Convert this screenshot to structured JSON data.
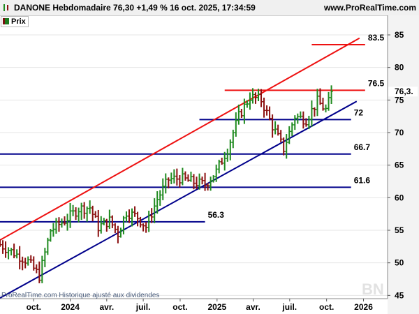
{
  "header": {
    "title": "DANONE Hebdomadaire 76,30 +1,49 % 16 oct. 2025, 17:34:59",
    "site": "www.ProRealTime.com"
  },
  "legend": {
    "label": "Prix"
  },
  "footer": {
    "note": "ProRealTime.com Historique ajusté aux dividendes",
    "watermark": "BN"
  },
  "colors": {
    "up": "#1f8a1f",
    "down": "#8b1010",
    "support": "#00008b",
    "resistance": "#ee1111"
  },
  "last_price_label": "76,3.",
  "chart_data": {
    "type": "ohlc",
    "ylim": [
      44.5,
      88
    ],
    "yticks": [
      {
        "value": 45,
        "label": "45"
      },
      {
        "value": 50,
        "label": "50"
      },
      {
        "value": 55,
        "label": "55"
      },
      {
        "value": 60,
        "label": "60"
      },
      {
        "value": 65,
        "label": "65"
      },
      {
        "value": 70,
        "label": "70"
      },
      {
        "value": 75,
        "label": "75"
      },
      {
        "value": 80,
        "label": "80"
      },
      {
        "value": 85,
        "label": "85"
      }
    ],
    "xlim": [
      "2023-07-10",
      "2026-03-02"
    ],
    "xticks": [
      {
        "date": "2023-10-02",
        "label": "oct."
      },
      {
        "date": "2024-01-01",
        "label": "2024"
      },
      {
        "date": "2024-04-01",
        "label": "avr."
      },
      {
        "date": "2024-07-01",
        "label": "juil."
      },
      {
        "date": "2024-10-01",
        "label": "oct."
      },
      {
        "date": "2025-01-01",
        "label": "2025"
      },
      {
        "date": "2025-04-01",
        "label": "avr."
      },
      {
        "date": "2025-07-01",
        "label": "juil."
      },
      {
        "date": "2025-10-01",
        "label": "oct."
      },
      {
        "date": "2026-01-01",
        "label": "2026"
      }
    ],
    "anchors": [
      {
        "date": "2023-07-10",
        "value": 52.8
      },
      {
        "date": "2023-08-14",
        "value": 51.5
      },
      {
        "date": "2023-09-18",
        "value": 50.2
      },
      {
        "date": "2023-10-16",
        "value": 48.0
      },
      {
        "date": "2023-11-13",
        "value": 55.0
      },
      {
        "date": "2023-12-18",
        "value": 56.5
      },
      {
        "date": "2024-01-22",
        "value": 58.3
      },
      {
        "date": "2024-02-19",
        "value": 58.5
      },
      {
        "date": "2024-03-11",
        "value": 55.5
      },
      {
        "date": "2024-04-08",
        "value": 56.5
      },
      {
        "date": "2024-04-29",
        "value": 54.5
      },
      {
        "date": "2024-05-20",
        "value": 57.8
      },
      {
        "date": "2024-06-17",
        "value": 57.0
      },
      {
        "date": "2024-07-08",
        "value": 55.5
      },
      {
        "date": "2024-08-05",
        "value": 59.8
      },
      {
        "date": "2024-09-02",
        "value": 62.8
      },
      {
        "date": "2024-09-30",
        "value": 63.0
      },
      {
        "date": "2024-10-28",
        "value": 62.5
      },
      {
        "date": "2024-12-02",
        "value": 62.0
      },
      {
        "date": "2024-12-30",
        "value": 64.0
      },
      {
        "date": "2025-01-27",
        "value": 67.5
      },
      {
        "date": "2025-02-24",
        "value": 72.5
      },
      {
        "date": "2025-03-24",
        "value": 75.5
      },
      {
        "date": "2025-04-21",
        "value": 75.0
      },
      {
        "date": "2025-05-19",
        "value": 71.0
      },
      {
        "date": "2025-06-16",
        "value": 67.5
      },
      {
        "date": "2025-07-14",
        "value": 72.5
      },
      {
        "date": "2025-08-11",
        "value": 72.0
      },
      {
        "date": "2025-09-08",
        "value": 74.8
      },
      {
        "date": "2025-09-29",
        "value": 73.5
      },
      {
        "date": "2025-10-16",
        "value": 76.3
      }
    ],
    "trendlines": [
      {
        "name": "channel-top",
        "color": "#ee1111",
        "points": [
          [
            "2023-07-10",
            53.5
          ],
          [
            "2025-12-22",
            84.5
          ]
        ]
      },
      {
        "name": "channel-bottom",
        "color": "#00008b",
        "points": [
          [
            "2023-07-10",
            44.6
          ],
          [
            "2025-12-15",
            74.8
          ]
        ]
      }
    ],
    "levels": [
      {
        "value": 83.5,
        "label": "83.5",
        "color": "#ee1111",
        "from": "2025-08-25",
        "to": "2026-01-05"
      },
      {
        "value": 76.5,
        "label": "76.5",
        "color": "#ee1111",
        "from": "2025-01-20",
        "to": "2026-01-05"
      },
      {
        "value": 72,
        "label": "72",
        "color": "#00008b",
        "from": "2024-11-18",
        "to": "2025-12-01"
      },
      {
        "value": 66.7,
        "label": "66.7",
        "color": "#00008b",
        "from": "2023-07-10",
        "to": "2025-12-01"
      },
      {
        "value": 61.6,
        "label": "61.6",
        "color": "#00008b",
        "from": "2023-07-10",
        "to": "2025-12-01"
      },
      {
        "value": 56.3,
        "label": "56.3",
        "color": "#00008b",
        "from": "2023-07-10",
        "to": "2024-12-02"
      }
    ],
    "last_price": 76.3
  }
}
